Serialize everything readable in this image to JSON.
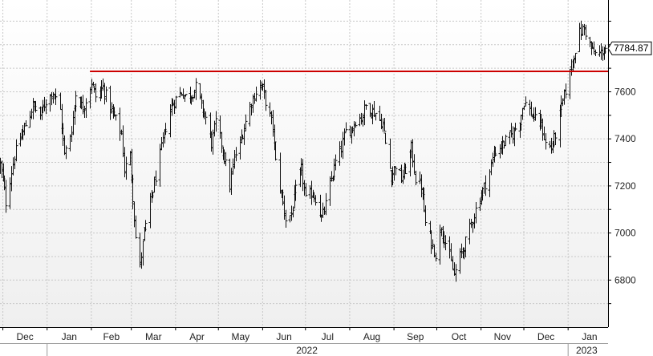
{
  "chart_data": {
    "type": "ohlc",
    "title": "",
    "xlabel": "",
    "ylabel": "",
    "ylim": [
      6600,
      7990
    ],
    "x_range": [
      "2021-11-29",
      "2023-01-29"
    ],
    "grid": true,
    "legend": "none",
    "y_ticks": [
      "6800",
      "7000",
      "7200",
      "7400",
      "7600"
    ],
    "x_month_labels": [
      {
        "label": "Dec",
        "date": "2021-12-01"
      },
      {
        "label": "Jan",
        "date": "2022-01-01"
      },
      {
        "label": "Feb",
        "date": "2022-02-01"
      },
      {
        "label": "Mar",
        "date": "2022-03-01"
      },
      {
        "label": "Apr",
        "date": "2022-04-01"
      },
      {
        "label": "May",
        "date": "2022-05-01"
      },
      {
        "label": "Jun",
        "date": "2022-06-01"
      },
      {
        "label": "Jul",
        "date": "2022-07-01"
      },
      {
        "label": "Aug",
        "date": "2022-08-01"
      },
      {
        "label": "Sep",
        "date": "2022-09-01"
      },
      {
        "label": "Oct",
        "date": "2022-10-01"
      },
      {
        "label": "Nov",
        "date": "2022-11-01"
      },
      {
        "label": "Dec",
        "date": "2022-12-01"
      },
      {
        "label": "Jan",
        "date": "2023-01-01"
      }
    ],
    "year_labels": [
      {
        "label": "2022",
        "date": "2022-07-02"
      },
      {
        "label": "2023",
        "date": "2023-01-14"
      }
    ],
    "year_boundaries": [
      "2022-01-01",
      "2023-01-01"
    ],
    "last_value": "7784.87",
    "last_value_num": 7784.87,
    "resistance_line": {
      "value": 7687,
      "start": "2022-01-31",
      "end": "2023-01-29",
      "color": "#cc0000"
    },
    "price_anchors": [
      [
        "2021-11-29",
        7290
      ],
      [
        "2021-12-01",
        7220
      ],
      [
        "2021-12-03",
        7130
      ],
      [
        "2021-12-06",
        7230
      ],
      [
        "2021-12-09",
        7330
      ],
      [
        "2021-12-13",
        7400
      ],
      [
        "2021-12-17",
        7460
      ],
      [
        "2021-12-22",
        7540
      ],
      [
        "2021-12-27",
        7500
      ],
      [
        "2021-12-31",
        7560
      ],
      [
        "2022-01-05",
        7600
      ],
      [
        "2022-01-10",
        7520
      ],
      [
        "2022-01-13",
        7330
      ],
      [
        "2022-01-18",
        7440
      ],
      [
        "2022-01-21",
        7590
      ],
      [
        "2022-01-26",
        7530
      ],
      [
        "2022-02-01",
        7640
      ],
      [
        "2022-02-04",
        7580
      ],
      [
        "2022-02-09",
        7620
      ],
      [
        "2022-02-14",
        7530
      ],
      [
        "2022-02-18",
        7480
      ],
      [
        "2022-02-22",
        7420
      ],
      [
        "2022-02-24",
        7270
      ],
      [
        "2022-02-28",
        7330
      ],
      [
        "2022-03-04",
        6980
      ],
      [
        "2022-03-07",
        6860
      ],
      [
        "2022-03-10",
        7000
      ],
      [
        "2022-03-14",
        7130
      ],
      [
        "2022-03-17",
        7210
      ],
      [
        "2022-03-22",
        7360
      ],
      [
        "2022-03-25",
        7450
      ],
      [
        "2022-03-29",
        7540
      ],
      [
        "2022-04-01",
        7570
      ],
      [
        "2022-04-05",
        7600
      ],
      [
        "2022-04-08",
        7580
      ],
      [
        "2022-04-12",
        7590
      ],
      [
        "2022-04-15",
        7620
      ],
      [
        "2022-04-19",
        7540
      ],
      [
        "2022-04-22",
        7490
      ],
      [
        "2022-04-26",
        7380
      ],
      [
        "2022-04-29",
        7470
      ],
      [
        "2022-05-03",
        7380
      ],
      [
        "2022-05-06",
        7290
      ],
      [
        "2022-05-09",
        7200
      ],
      [
        "2022-05-12",
        7320
      ],
      [
        "2022-05-16",
        7380
      ],
      [
        "2022-05-19",
        7450
      ],
      [
        "2022-05-23",
        7540
      ],
      [
        "2022-05-27",
        7600
      ],
      [
        "2022-05-31",
        7630
      ],
      [
        "2022-06-03",
        7560
      ],
      [
        "2022-06-08",
        7450
      ],
      [
        "2022-06-10",
        7300
      ],
      [
        "2022-06-14",
        7160
      ],
      [
        "2022-06-17",
        7060
      ],
      [
        "2022-06-21",
        7080
      ],
      [
        "2022-06-24",
        7180
      ],
      [
        "2022-06-28",
        7270
      ],
      [
        "2022-07-01",
        7140
      ],
      [
        "2022-07-05",
        7170
      ],
      [
        "2022-07-08",
        7150
      ],
      [
        "2022-07-12",
        7060
      ],
      [
        "2022-07-15",
        7120
      ],
      [
        "2022-07-19",
        7230
      ],
      [
        "2022-07-22",
        7300
      ],
      [
        "2022-07-26",
        7360
      ],
      [
        "2022-07-29",
        7430
      ],
      [
        "2022-08-02",
        7440
      ],
      [
        "2022-08-05",
        7480
      ],
      [
        "2022-08-09",
        7490
      ],
      [
        "2022-08-12",
        7540
      ],
      [
        "2022-08-16",
        7520
      ],
      [
        "2022-08-19",
        7510
      ],
      [
        "2022-08-24",
        7460
      ],
      [
        "2022-08-26",
        7380
      ],
      [
        "2022-08-30",
        7240
      ],
      [
        "2022-09-02",
        7290
      ],
      [
        "2022-09-06",
        7230
      ],
      [
        "2022-09-09",
        7270
      ],
      [
        "2022-09-13",
        7360
      ],
      [
        "2022-09-16",
        7230
      ],
      [
        "2022-09-20",
        7200
      ],
      [
        "2022-09-23",
        7040
      ],
      [
        "2022-09-27",
        6960
      ],
      [
        "2022-09-30",
        6910
      ],
      [
        "2022-10-04",
        7030
      ],
      [
        "2022-10-07",
        6960
      ],
      [
        "2022-10-10",
        6900
      ],
      [
        "2022-10-13",
        6820
      ],
      [
        "2022-10-17",
        6900
      ],
      [
        "2022-10-21",
        6960
      ],
      [
        "2022-10-25",
        7040
      ],
      [
        "2022-10-28",
        7100
      ],
      [
        "2022-11-02",
        7180
      ],
      [
        "2022-11-07",
        7260
      ],
      [
        "2022-11-10",
        7340
      ],
      [
        "2022-11-15",
        7370
      ],
      [
        "2022-11-18",
        7390
      ],
      [
        "2022-11-23",
        7420
      ],
      [
        "2022-11-28",
        7480
      ],
      [
        "2022-12-01",
        7560
      ],
      [
        "2022-12-05",
        7520
      ],
      [
        "2022-12-09",
        7480
      ],
      [
        "2022-12-13",
        7460
      ],
      [
        "2022-12-16",
        7380
      ],
      [
        "2022-12-20",
        7360
      ],
      [
        "2022-12-23",
        7420
      ],
      [
        "2022-12-28",
        7560
      ],
      [
        "2023-01-02",
        7680
      ],
      [
        "2023-01-05",
        7760
      ],
      [
        "2023-01-09",
        7850
      ],
      [
        "2023-01-12",
        7870
      ],
      [
        "2023-01-16",
        7800
      ],
      [
        "2023-01-19",
        7760
      ],
      [
        "2023-01-23",
        7760
      ],
      [
        "2023-01-27",
        7785
      ]
    ]
  },
  "colors": {
    "bars": "#111111",
    "grid": "#c8c8c8",
    "axis": "#000000",
    "resistance": "#cc0000",
    "background_top": "#ffffff",
    "background_bottom": "#efefef"
  }
}
